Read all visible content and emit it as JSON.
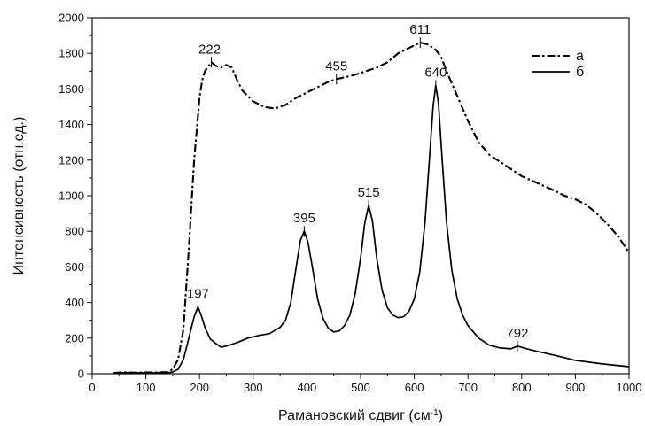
{
  "chart_data": {
    "type": "line",
    "xlabel": "Рамановский сдвиг (см",
    "xlabel_sup": "-1",
    "xlabel_close": ")",
    "ylabel": "Интенсивность (отн.ед.)",
    "xlim": [
      0,
      1000
    ],
    "ylim": [
      0,
      2000
    ],
    "xticks": [
      0,
      100,
      200,
      300,
      400,
      500,
      600,
      700,
      800,
      900,
      1000
    ],
    "yticks": [
      0,
      200,
      400,
      600,
      800,
      1000,
      1200,
      1400,
      1600,
      1800,
      2000
    ],
    "grid": false,
    "legend_position": "top-right",
    "series": [
      {
        "name": "a",
        "style": "dash-dot",
        "x": [
          40,
          60,
          80,
          100,
          120,
          140,
          150,
          160,
          170,
          180,
          190,
          200,
          205,
          210,
          215,
          222,
          230,
          240,
          250,
          260,
          270,
          280,
          290,
          300,
          320,
          340,
          360,
          380,
          400,
          420,
          440,
          455,
          470,
          490,
          510,
          530,
          550,
          570,
          590,
          611,
          625,
          640,
          650,
          660,
          680,
          700,
          720,
          740,
          760,
          780,
          800,
          830,
          860,
          880,
          900,
          920,
          940,
          960,
          980,
          1000
        ],
        "y": [
          5,
          8,
          6,
          8,
          7,
          10,
          25,
          80,
          250,
          700,
          1200,
          1550,
          1650,
          1700,
          1720,
          1750,
          1730,
          1720,
          1735,
          1720,
          1650,
          1590,
          1560,
          1530,
          1500,
          1490,
          1510,
          1550,
          1580,
          1610,
          1640,
          1655,
          1665,
          1680,
          1700,
          1720,
          1750,
          1800,
          1830,
          1860,
          1850,
          1820,
          1780,
          1700,
          1560,
          1420,
          1300,
          1230,
          1190,
          1150,
          1110,
          1070,
          1030,
          1000,
          980,
          950,
          900,
          840,
          770,
          680
        ]
      },
      {
        "name": "б",
        "style": "solid",
        "x": [
          40,
          60,
          80,
          100,
          120,
          140,
          150,
          160,
          170,
          180,
          185,
          190,
          197,
          203,
          210,
          220,
          230,
          240,
          250,
          270,
          290,
          310,
          330,
          350,
          360,
          370,
          380,
          388,
          395,
          402,
          410,
          420,
          430,
          440,
          450,
          460,
          470,
          480,
          490,
          500,
          508,
          515,
          522,
          530,
          540,
          550,
          560,
          570,
          580,
          590,
          600,
          610,
          620,
          628,
          635,
          640,
          645,
          652,
          660,
          670,
          680,
          690,
          700,
          720,
          740,
          760,
          780,
          792,
          810,
          830,
          860,
          900,
          950,
          1000
        ],
        "y": [
          5,
          5,
          5,
          5,
          5,
          5,
          10,
          25,
          80,
          200,
          260,
          320,
          375,
          330,
          260,
          195,
          170,
          150,
          155,
          175,
          200,
          215,
          225,
          260,
          300,
          400,
          600,
          750,
          800,
          740,
          600,
          420,
          310,
          255,
          235,
          240,
          270,
          330,
          450,
          650,
          850,
          945,
          860,
          650,
          470,
          370,
          330,
          315,
          320,
          350,
          420,
          570,
          850,
          1200,
          1500,
          1620,
          1520,
          1200,
          850,
          580,
          420,
          330,
          270,
          200,
          160,
          145,
          140,
          155,
          140,
          125,
          105,
          75,
          55,
          40
        ]
      }
    ],
    "annotations": [
      {
        "label": "222",
        "series": 0,
        "x": 222,
        "y": 1750
      },
      {
        "label": "455",
        "series": 0,
        "x": 455,
        "y": 1655
      },
      {
        "label": "611",
        "series": 0,
        "x": 611,
        "y": 1860
      },
      {
        "label": "197",
        "series": 1,
        "x": 197,
        "y": 375
      },
      {
        "label": "395",
        "series": 1,
        "x": 395,
        "y": 800
      },
      {
        "label": "515",
        "series": 1,
        "x": 515,
        "y": 945
      },
      {
        "label": "640",
        "series": 1,
        "x": 640,
        "y": 1620
      },
      {
        "label": "792",
        "series": 1,
        "x": 792,
        "y": 155
      }
    ]
  }
}
